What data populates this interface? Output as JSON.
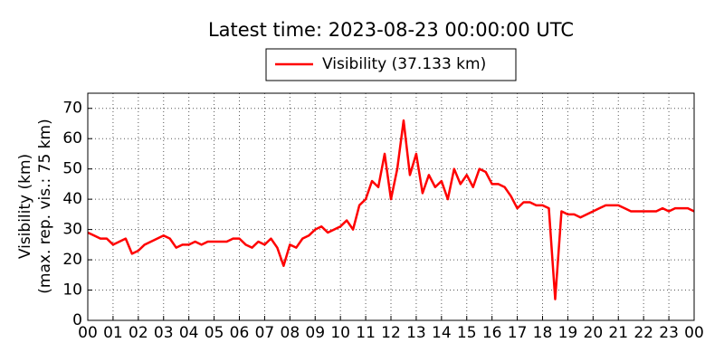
{
  "chart_data": {
    "type": "line",
    "title": "Latest time: 2023-08-23 00:00:00 UTC",
    "y_label": [
      "Visibility (km)",
      "(max. rep. vis.: 75 km)"
    ],
    "legend": "top",
    "grid": true,
    "xlim": [
      0,
      24
    ],
    "ylim": [
      0,
      75
    ],
    "yticks": [
      0,
      10,
      20,
      30,
      40,
      50,
      60,
      70
    ],
    "xticks": [
      {
        "value": 0,
        "label": "00"
      },
      {
        "value": 1,
        "label": "01"
      },
      {
        "value": 2,
        "label": "02"
      },
      {
        "value": 3,
        "label": "03"
      },
      {
        "value": 4,
        "label": "04"
      },
      {
        "value": 5,
        "label": "05"
      },
      {
        "value": 6,
        "label": "06"
      },
      {
        "value": 7,
        "label": "07"
      },
      {
        "value": 8,
        "label": "08"
      },
      {
        "value": 9,
        "label": "09"
      },
      {
        "value": 10,
        "label": "10"
      },
      {
        "value": 11,
        "label": "11"
      },
      {
        "value": 12,
        "label": "12"
      },
      {
        "value": 13,
        "label": "13"
      },
      {
        "value": 14,
        "label": "14"
      },
      {
        "value": 15,
        "label": "15"
      },
      {
        "value": 16,
        "label": "16"
      },
      {
        "value": 17,
        "label": "17"
      },
      {
        "value": 18,
        "label": "18"
      },
      {
        "value": 19,
        "label": "19"
      },
      {
        "value": 20,
        "label": "20"
      },
      {
        "value": 21,
        "label": "21"
      },
      {
        "value": 22,
        "label": "22"
      },
      {
        "value": 23,
        "label": "23"
      },
      {
        "value": 24,
        "label": "00"
      }
    ],
    "x": [
      0,
      0.25,
      0.5,
      0.75,
      1,
      1.25,
      1.5,
      1.75,
      2,
      2.25,
      2.5,
      2.75,
      3,
      3.25,
      3.5,
      3.75,
      4,
      4.25,
      4.5,
      4.75,
      5,
      5.25,
      5.5,
      5.75,
      6,
      6.25,
      6.5,
      6.75,
      7,
      7.25,
      7.5,
      7.75,
      8,
      8.25,
      8.5,
      8.75,
      9,
      9.25,
      9.5,
      9.75,
      10,
      10.25,
      10.5,
      10.75,
      11,
      11.25,
      11.5,
      11.75,
      12,
      12.25,
      12.5,
      12.75,
      13,
      13.25,
      13.5,
      13.75,
      14,
      14.25,
      14.5,
      14.75,
      15,
      15.25,
      15.5,
      15.75,
      16,
      16.25,
      16.5,
      16.75,
      17,
      17.25,
      17.5,
      17.75,
      18,
      18.25,
      18.5,
      18.75,
      19,
      19.25,
      19.5,
      19.75,
      20,
      20.25,
      20.5,
      20.75,
      21,
      21.25,
      21.5,
      21.75,
      22,
      22.25,
      22.5,
      22.75,
      23,
      23.25,
      23.5,
      23.75,
      24
    ],
    "series": [
      {
        "name": "Visibility (37.133 km)",
        "color": "#ff0000",
        "values": [
          29,
          28,
          27,
          27,
          25,
          26,
          27,
          22,
          23,
          25,
          26,
          27,
          28,
          27,
          24,
          25,
          25,
          26,
          25,
          26,
          26,
          26,
          26,
          27,
          27,
          25,
          24,
          26,
          25,
          27,
          24,
          18,
          25,
          24,
          27,
          28,
          30,
          31,
          29,
          30,
          31,
          33,
          30,
          38,
          40,
          46,
          44,
          55,
          40,
          50,
          66,
          48,
          55,
          42,
          48,
          44,
          46,
          40,
          50,
          45,
          48,
          44,
          50,
          49,
          45,
          45,
          44,
          41,
          37,
          39,
          39,
          38,
          38,
          37,
          7,
          36,
          35,
          35,
          34,
          35,
          36,
          37,
          38,
          38,
          38,
          37,
          36,
          36,
          36,
          36,
          36,
          37,
          36,
          37,
          37,
          37,
          36
        ]
      }
    ]
  }
}
